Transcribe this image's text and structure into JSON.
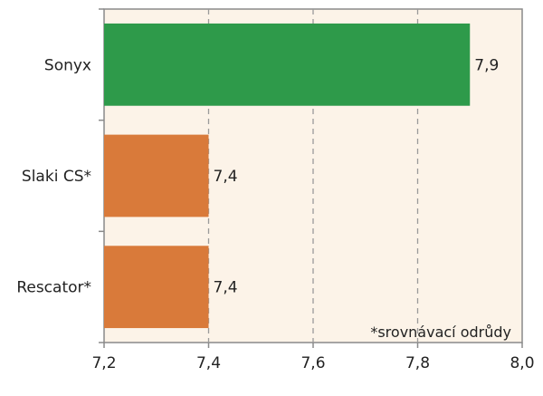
{
  "chart_data": {
    "type": "bar",
    "orientation": "horizontal",
    "categories": [
      "Sonyx",
      "Slaki CS*",
      "Rescator*"
    ],
    "values": [
      7.9,
      7.4,
      7.4
    ],
    "data_labels": [
      "7,9",
      "7,4",
      "7,4"
    ],
    "bar_colors": [
      "#2e9a4a",
      "#d97a3a",
      "#d97a3a"
    ],
    "xlim": [
      7.2,
      8.0
    ],
    "x_ticks": [
      7.2,
      7.4,
      7.6,
      7.8,
      8.0
    ],
    "x_tick_labels": [
      "7,2",
      "7,4",
      "7,6",
      "7,8",
      "8,0"
    ],
    "grid": "vertical dashed",
    "plot_background": "#fcf3e8",
    "annotation": "*srovnávací odrůdy",
    "title": "",
    "xlabel": "",
    "ylabel": ""
  }
}
